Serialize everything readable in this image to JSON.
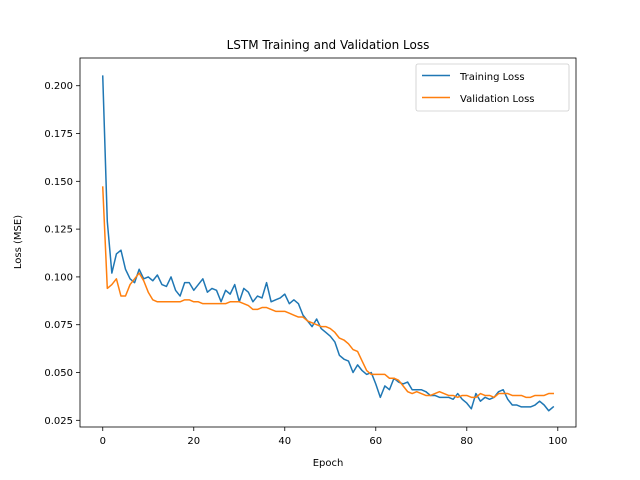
{
  "chart_data": {
    "type": "line",
    "title": "LSTM Training and Validation Loss",
    "xlabel": "Epoch",
    "ylabel": "Loss (MSE)",
    "xlim": [
      -5,
      104
    ],
    "ylim": [
      0.0215,
      0.2145
    ],
    "xticks": [
      0,
      20,
      40,
      60,
      80,
      100
    ],
    "yticks": [
      0.025,
      0.05,
      0.075,
      0.1,
      0.125,
      0.15,
      0.175,
      0.2
    ],
    "ytick_labels": [
      "0.025",
      "0.050",
      "0.075",
      "0.100",
      "0.125",
      "0.150",
      "0.175",
      "0.200"
    ],
    "grid": false,
    "legend_position": "top-right",
    "x": [
      0,
      1,
      2,
      3,
      4,
      5,
      6,
      7,
      8,
      9,
      10,
      11,
      12,
      13,
      14,
      15,
      16,
      17,
      18,
      19,
      20,
      21,
      22,
      23,
      24,
      25,
      26,
      27,
      28,
      29,
      30,
      31,
      32,
      33,
      34,
      35,
      36,
      37,
      38,
      39,
      40,
      41,
      42,
      43,
      44,
      45,
      46,
      47,
      48,
      49,
      50,
      51,
      52,
      53,
      54,
      55,
      56,
      57,
      58,
      59,
      60,
      61,
      62,
      63,
      64,
      65,
      66,
      67,
      68,
      69,
      70,
      71,
      72,
      73,
      74,
      75,
      76,
      77,
      78,
      79,
      80,
      81,
      82,
      83,
      84,
      85,
      86,
      87,
      88,
      89,
      90,
      91,
      92,
      93,
      94,
      95,
      96,
      97,
      98,
      99
    ],
    "series": [
      {
        "name": "Training Loss",
        "color": "#1f77b4",
        "values": [
          0.205,
          0.129,
          0.102,
          0.112,
          0.114,
          0.104,
          0.099,
          0.097,
          0.104,
          0.099,
          0.1,
          0.098,
          0.101,
          0.096,
          0.095,
          0.1,
          0.093,
          0.09,
          0.097,
          0.097,
          0.093,
          0.096,
          0.099,
          0.092,
          0.094,
          0.093,
          0.087,
          0.093,
          0.091,
          0.096,
          0.087,
          0.094,
          0.092,
          0.087,
          0.09,
          0.089,
          0.097,
          0.087,
          0.088,
          0.089,
          0.091,
          0.086,
          0.088,
          0.086,
          0.08,
          0.077,
          0.074,
          0.078,
          0.073,
          0.071,
          0.069,
          0.066,
          0.059,
          0.057,
          0.056,
          0.05,
          0.054,
          0.051,
          0.049,
          0.05,
          0.044,
          0.037,
          0.043,
          0.041,
          0.047,
          0.045,
          0.044,
          0.045,
          0.041,
          0.041,
          0.041,
          0.04,
          0.038,
          0.038,
          0.037,
          0.037,
          0.037,
          0.036,
          0.039,
          0.036,
          0.034,
          0.031,
          0.039,
          0.035,
          0.037,
          0.036,
          0.037,
          0.04,
          0.041,
          0.036,
          0.033,
          0.033,
          0.032,
          0.032,
          0.032,
          0.033,
          0.035,
          0.033,
          0.03,
          0.032
        ]
      },
      {
        "name": "Validation Loss",
        "color": "#ff7f0e",
        "values": [
          0.147,
          0.094,
          0.096,
          0.099,
          0.09,
          0.09,
          0.096,
          0.099,
          0.102,
          0.098,
          0.092,
          0.088,
          0.087,
          0.087,
          0.087,
          0.087,
          0.087,
          0.087,
          0.088,
          0.088,
          0.087,
          0.087,
          0.086,
          0.086,
          0.086,
          0.086,
          0.086,
          0.086,
          0.087,
          0.087,
          0.087,
          0.086,
          0.085,
          0.083,
          0.083,
          0.084,
          0.084,
          0.083,
          0.082,
          0.082,
          0.082,
          0.081,
          0.08,
          0.079,
          0.079,
          0.077,
          0.076,
          0.075,
          0.074,
          0.074,
          0.073,
          0.071,
          0.068,
          0.067,
          0.065,
          0.062,
          0.061,
          0.056,
          0.051,
          0.049,
          0.049,
          0.049,
          0.049,
          0.047,
          0.047,
          0.046,
          0.043,
          0.04,
          0.039,
          0.04,
          0.039,
          0.038,
          0.038,
          0.039,
          0.04,
          0.039,
          0.038,
          0.038,
          0.037,
          0.038,
          0.038,
          0.037,
          0.037,
          0.039,
          0.038,
          0.038,
          0.037,
          0.039,
          0.039,
          0.039,
          0.038,
          0.038,
          0.038,
          0.037,
          0.037,
          0.038,
          0.038,
          0.038,
          0.039,
          0.039
        ]
      }
    ]
  }
}
